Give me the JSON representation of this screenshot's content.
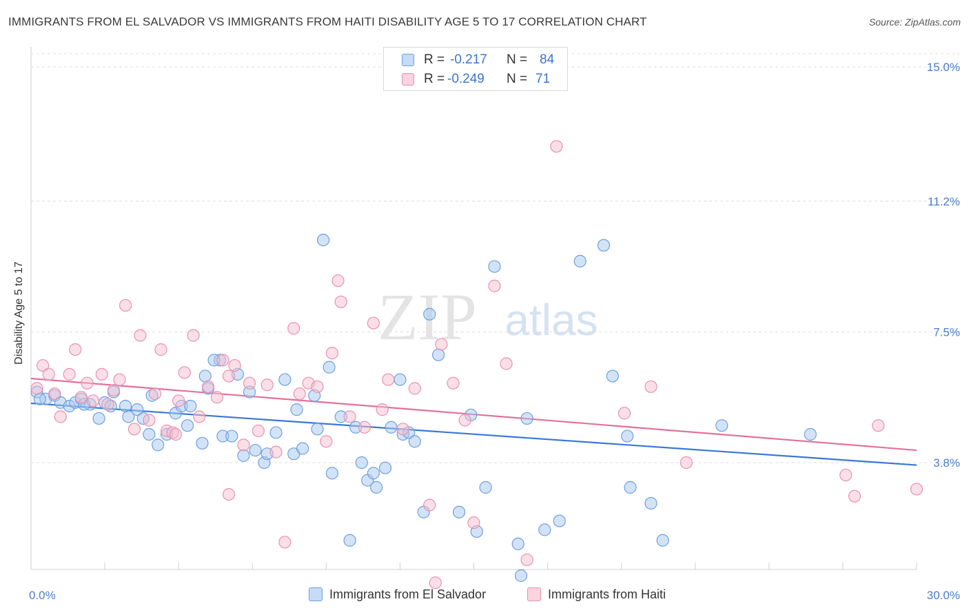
{
  "header": {
    "title": "IMMIGRANTS FROM EL SALVADOR VS IMMIGRANTS FROM HAITI DISABILITY AGE 5 TO 17 CORRELATION CHART",
    "source": "Source: ZipAtlas.com"
  },
  "watermark": {
    "zip": "ZIP",
    "atlas": "atlas"
  },
  "legend": {
    "rows": [
      {
        "r_label": "R =",
        "r_value": "-0.217",
        "n_label": "N =",
        "n_value": "84"
      },
      {
        "r_label": "R =",
        "r_value": "-0.249",
        "n_label": "N =",
        "n_value": "71"
      }
    ]
  },
  "colors": {
    "el_salvador_fill": "#a8c8f0",
    "el_salvador_stroke": "#6a9fe0",
    "el_salvador_line": "#3a78d4",
    "haiti_fill": "#f6bfd0",
    "haiti_stroke": "#e890b0",
    "haiti_line": "#e3709a",
    "tick_text": "#4a7cc9",
    "grid": "#dcdcdc"
  },
  "chart_data": {
    "type": "scatter",
    "title": "IMMIGRANTS FROM EL SALVADOR VS IMMIGRANTS FROM HAITI DISABILITY AGE 5 TO 17 CORRELATION CHART",
    "xlabel": "",
    "ylabel": "Disability Age 5 to 17",
    "xlim": [
      0,
      30
    ],
    "ylim": [
      0,
      15
    ],
    "x_tick_labels": [
      "0.0%",
      "30.0%"
    ],
    "y_tick_values": [
      3.8,
      7.5,
      11.2,
      15.0
    ],
    "y_tick_labels": [
      "3.8%",
      "7.5%",
      "11.2%",
      "15.0%"
    ],
    "grid": true,
    "legend_position": "top-center",
    "series": [
      {
        "name": "Immigrants from El Salvador",
        "R": -0.217,
        "N": 84,
        "trend": {
          "x": [
            0,
            30
          ],
          "y": [
            5.48,
            3.73
          ]
        },
        "points": [
          [
            0.2,
            5.8
          ],
          [
            0.5,
            5.6
          ],
          [
            0.8,
            5.7
          ],
          [
            1.0,
            5.5
          ],
          [
            1.3,
            5.4
          ],
          [
            1.5,
            5.5
          ],
          [
            1.7,
            5.6
          ],
          [
            2.0,
            5.45
          ],
          [
            2.3,
            5.05
          ],
          [
            2.5,
            5.5
          ],
          [
            2.7,
            5.4
          ],
          [
            2.8,
            5.8
          ],
          [
            3.2,
            5.4
          ],
          [
            3.3,
            5.1
          ],
          [
            3.6,
            5.3
          ],
          [
            3.8,
            5.05
          ],
          [
            4.0,
            4.6
          ],
          [
            4.1,
            5.7
          ],
          [
            4.3,
            4.3
          ],
          [
            4.6,
            4.6
          ],
          [
            4.9,
            5.2
          ],
          [
            5.1,
            5.4
          ],
          [
            5.3,
            4.85
          ],
          [
            5.4,
            5.4
          ],
          [
            5.8,
            4.35
          ],
          [
            5.9,
            6.25
          ],
          [
            6.0,
            5.9
          ],
          [
            6.4,
            6.7
          ],
          [
            6.5,
            4.55
          ],
          [
            6.8,
            4.55
          ],
          [
            7.0,
            6.3
          ],
          [
            7.2,
            4.0
          ],
          [
            7.4,
            5.8
          ],
          [
            7.6,
            4.15
          ],
          [
            7.9,
            3.8
          ],
          [
            8.0,
            4.05
          ],
          [
            8.3,
            4.65
          ],
          [
            8.6,
            6.15
          ],
          [
            8.9,
            4.05
          ],
          [
            9.0,
            5.3
          ],
          [
            9.2,
            4.2
          ],
          [
            9.6,
            5.7
          ],
          [
            9.7,
            4.75
          ],
          [
            9.9,
            10.1
          ],
          [
            10.1,
            6.5
          ],
          [
            10.2,
            3.5
          ],
          [
            10.5,
            5.1
          ],
          [
            10.8,
            1.6
          ],
          [
            11.0,
            4.8
          ],
          [
            11.2,
            3.8
          ],
          [
            11.4,
            3.3
          ],
          [
            11.6,
            3.5
          ],
          [
            11.7,
            3.1
          ],
          [
            12.0,
            3.65
          ],
          [
            12.2,
            4.8
          ],
          [
            12.5,
            6.15
          ],
          [
            12.6,
            4.6
          ],
          [
            12.8,
            4.65
          ],
          [
            13.0,
            4.4
          ],
          [
            13.3,
            2.4
          ],
          [
            13.5,
            8.0
          ],
          [
            13.8,
            6.85
          ],
          [
            14.5,
            2.4
          ],
          [
            14.9,
            5.15
          ],
          [
            15.1,
            1.85
          ],
          [
            15.4,
            3.1
          ],
          [
            15.7,
            9.35
          ],
          [
            16.5,
            1.5
          ],
          [
            16.6,
            0.6
          ],
          [
            16.8,
            5.05
          ],
          [
            17.4,
            1.9
          ],
          [
            17.9,
            2.15
          ],
          [
            18.6,
            9.5
          ],
          [
            19.4,
            9.95
          ],
          [
            19.7,
            6.25
          ],
          [
            20.2,
            4.55
          ],
          [
            20.3,
            3.1
          ],
          [
            21.0,
            2.65
          ],
          [
            21.4,
            1.6
          ],
          [
            23.4,
            4.85
          ],
          [
            26.4,
            4.6
          ],
          [
            0.3,
            5.6
          ],
          [
            1.8,
            5.45
          ],
          [
            6.2,
            6.7
          ]
        ]
      },
      {
        "name": "Immigrants from Haiti",
        "R": -0.249,
        "N": 71,
        "trend": {
          "x": [
            0,
            30
          ],
          "y": [
            6.18,
            4.15
          ]
        },
        "points": [
          [
            0.2,
            5.9
          ],
          [
            0.4,
            6.55
          ],
          [
            0.6,
            6.3
          ],
          [
            0.8,
            5.75
          ],
          [
            1.0,
            5.1
          ],
          [
            1.3,
            6.3
          ],
          [
            1.5,
            7.0
          ],
          [
            1.7,
            5.65
          ],
          [
            1.9,
            6.05
          ],
          [
            2.1,
            5.55
          ],
          [
            2.4,
            6.3
          ],
          [
            2.6,
            5.45
          ],
          [
            2.8,
            5.85
          ],
          [
            3.0,
            6.15
          ],
          [
            3.2,
            8.25
          ],
          [
            3.5,
            4.75
          ],
          [
            3.7,
            7.4
          ],
          [
            4.0,
            5.0
          ],
          [
            4.2,
            5.75
          ],
          [
            4.4,
            7.0
          ],
          [
            4.6,
            4.7
          ],
          [
            4.8,
            4.65
          ],
          [
            5.0,
            5.55
          ],
          [
            5.2,
            6.35
          ],
          [
            5.5,
            7.4
          ],
          [
            5.7,
            5.1
          ],
          [
            6.0,
            5.95
          ],
          [
            6.3,
            5.65
          ],
          [
            6.5,
            6.7
          ],
          [
            6.7,
            6.25
          ],
          [
            6.9,
            6.55
          ],
          [
            6.7,
            2.9
          ],
          [
            7.2,
            4.3
          ],
          [
            7.4,
            6.05
          ],
          [
            7.7,
            4.7
          ],
          [
            8.0,
            6.0
          ],
          [
            8.3,
            4.1
          ],
          [
            8.6,
            1.55
          ],
          [
            8.9,
            7.6
          ],
          [
            9.1,
            5.75
          ],
          [
            9.4,
            6.05
          ],
          [
            9.7,
            5.95
          ],
          [
            10.0,
            4.4
          ],
          [
            10.2,
            6.9
          ],
          [
            10.4,
            8.95
          ],
          [
            10.5,
            8.35
          ],
          [
            10.8,
            5.1
          ],
          [
            11.3,
            4.8
          ],
          [
            11.6,
            7.75
          ],
          [
            11.9,
            5.3
          ],
          [
            12.1,
            6.15
          ],
          [
            12.6,
            4.75
          ],
          [
            13.0,
            5.9
          ],
          [
            13.5,
            2.6
          ],
          [
            13.7,
            0.4
          ],
          [
            13.9,
            7.15
          ],
          [
            14.3,
            6.05
          ],
          [
            14.7,
            5.0
          ],
          [
            15.0,
            2.1
          ],
          [
            15.7,
            8.8
          ],
          [
            16.1,
            6.6
          ],
          [
            16.8,
            1.05
          ],
          [
            17.8,
            12.75
          ],
          [
            21.0,
            5.95
          ],
          [
            20.1,
            5.2
          ],
          [
            22.2,
            3.8
          ],
          [
            27.6,
            3.45
          ],
          [
            27.9,
            2.85
          ],
          [
            28.7,
            4.85
          ],
          [
            30.0,
            3.05
          ],
          [
            4.9,
            4.6
          ]
        ]
      }
    ]
  },
  "bottom_legend": {
    "items": [
      "Immigrants from El Salvador",
      "Immigrants from Haiti"
    ]
  }
}
